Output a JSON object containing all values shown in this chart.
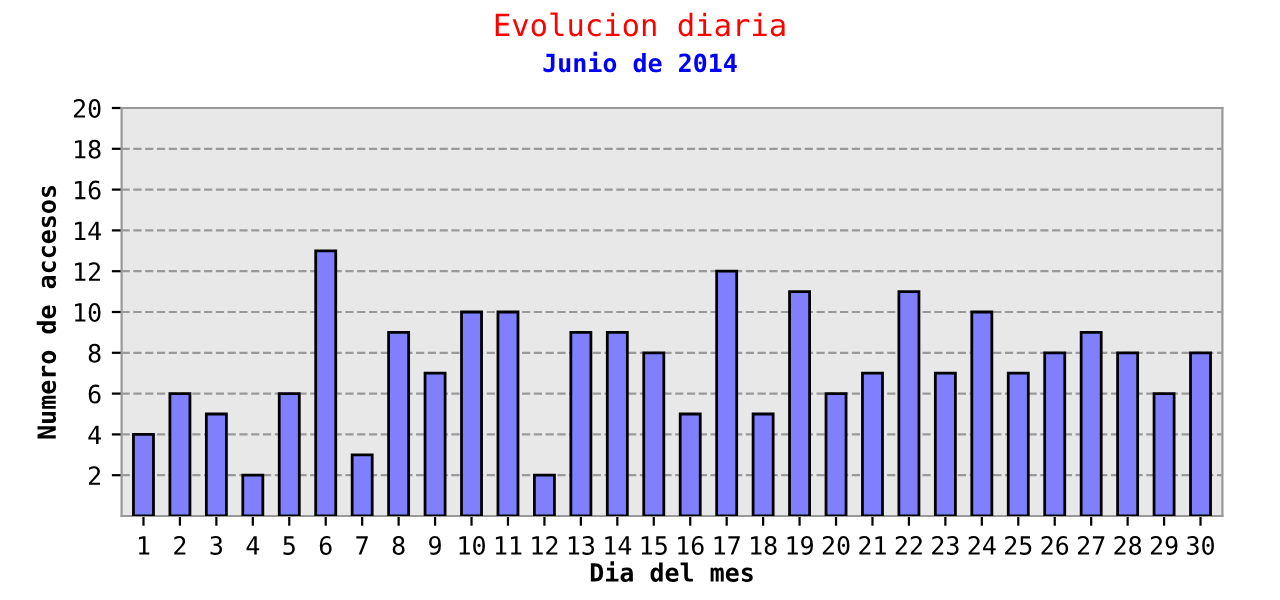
{
  "chart_data": {
    "type": "bar",
    "title": "Evolucion diaria",
    "subtitle": "Junio de 2014",
    "xlabel": "Dia del mes",
    "ylabel": "Numero de accesos",
    "categories": [
      "1",
      "2",
      "3",
      "4",
      "5",
      "6",
      "7",
      "8",
      "9",
      "10",
      "11",
      "12",
      "13",
      "14",
      "15",
      "16",
      "17",
      "18",
      "19",
      "20",
      "21",
      "22",
      "23",
      "24",
      "25",
      "26",
      "27",
      "28",
      "29",
      "30"
    ],
    "values": [
      4,
      6,
      5,
      2,
      6,
      13,
      3,
      9,
      7,
      10,
      10,
      2,
      9,
      9,
      8,
      5,
      12,
      5,
      11,
      6,
      7,
      11,
      7,
      10,
      7,
      8,
      9,
      8,
      6,
      8
    ],
    "color": "#8080ff",
    "ylim": [
      0,
      20
    ],
    "yticks": [
      2,
      4,
      6,
      8,
      10,
      12,
      14,
      16,
      18,
      20
    ],
    "grid": "y"
  }
}
